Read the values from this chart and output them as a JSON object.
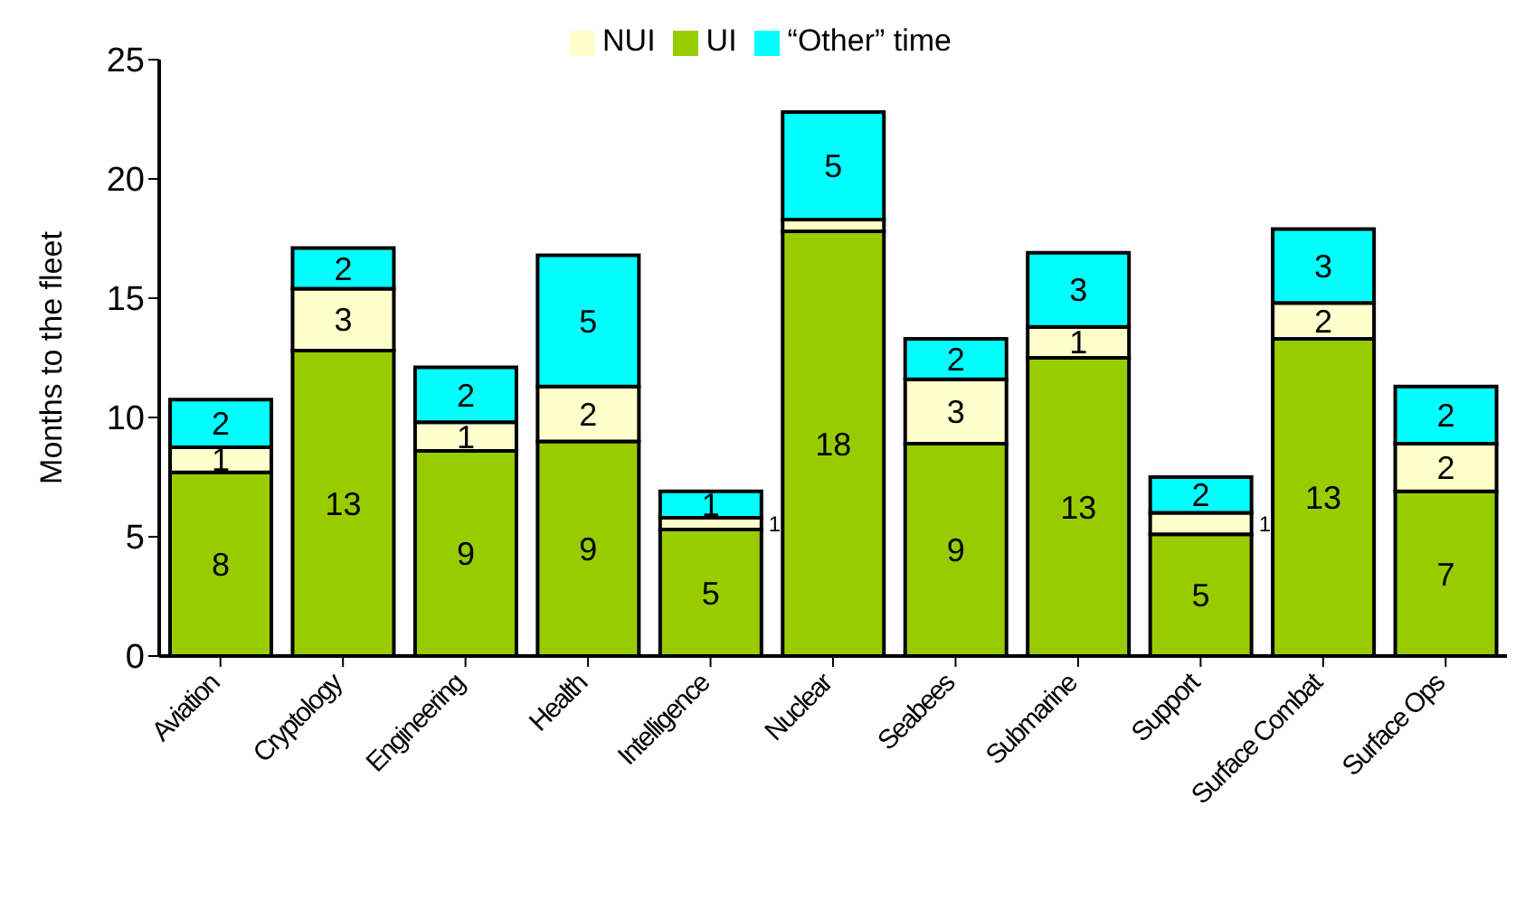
{
  "chart_data": {
    "type": "bar",
    "stacked": true,
    "ylabel": "Months to the fleet",
    "categories": [
      "Aviation",
      "Cryptology",
      "Engineering",
      "Health",
      "Intelligence",
      "Nuclear",
      "Seabees",
      "Submarine",
      "Support",
      "Surface Combat",
      "Surface Ops"
    ],
    "series": [
      {
        "name": "UI",
        "color": "#99cc00",
        "values": [
          7.7,
          12.8,
          8.6,
          9.0,
          5.3,
          17.8,
          8.9,
          12.5,
          5.1,
          13.3,
          6.9
        ],
        "value_labels": [
          "8",
          "13",
          "9",
          "9",
          "5",
          "18",
          "9",
          "13",
          "5",
          "13",
          "7"
        ]
      },
      {
        "name": "NUI",
        "color": "#ffffcc",
        "values": [
          1.05,
          2.6,
          1.2,
          2.3,
          0.5,
          0.5,
          2.7,
          1.3,
          0.9,
          1.5,
          2.0
        ],
        "value_labels": [
          "1",
          "3",
          "1",
          "2",
          "1",
          null,
          "3",
          "1",
          "1",
          "2",
          "2"
        ]
      },
      {
        "name": "“Other” time",
        "color": "#00ffff",
        "values": [
          2.0,
          1.7,
          2.3,
          5.5,
          1.1,
          4.5,
          1.7,
          3.1,
          1.5,
          3.1,
          2.4
        ],
        "value_labels": [
          "2",
          "2",
          "2",
          "5",
          "1",
          "5",
          "2",
          "3",
          "2",
          "3",
          "2"
        ]
      }
    ],
    "ylim": [
      0,
      25
    ],
    "yticks": [
      0,
      5,
      10,
      15,
      20,
      25
    ],
    "grid": false,
    "legend": "top"
  }
}
